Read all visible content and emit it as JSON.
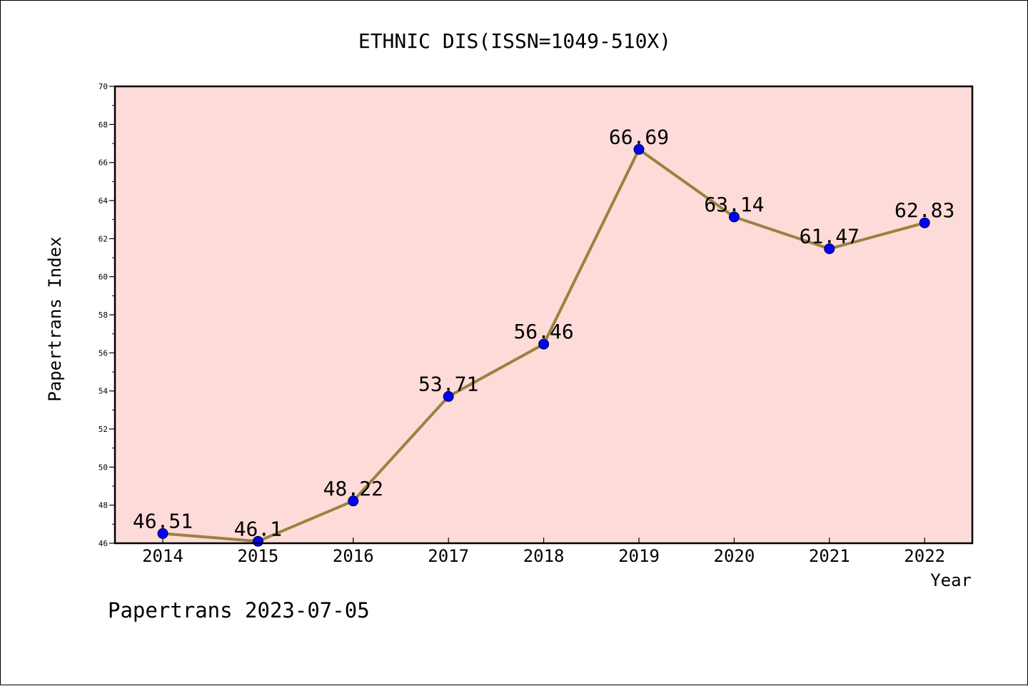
{
  "chart_data": {
    "type": "line",
    "title": "ETHNIC DIS(ISSN=1049-510X)",
    "xlabel": "Year",
    "ylabel": "Papertrans Index",
    "footer": "Papertrans 2023-07-05",
    "categories": [
      "2014",
      "2015",
      "2016",
      "2017",
      "2018",
      "2019",
      "2020",
      "2021",
      "2022"
    ],
    "values": [
      46.51,
      46.1,
      48.22,
      53.71,
      56.46,
      66.69,
      63.14,
      61.47,
      62.83
    ],
    "data_labels": [
      "46.51",
      "46.1",
      "48.22",
      "53.71",
      "56.46",
      "66.69",
      "63.14",
      "61.47",
      "62.83"
    ],
    "ylim": [
      46,
      70
    ],
    "yticks": [
      "46",
      "48",
      "50",
      "52",
      "54",
      "56",
      "58",
      "60",
      "62",
      "64",
      "66",
      "68",
      "70"
    ],
    "grid": false,
    "colors": {
      "plot_background": "#fddbd8",
      "line": "#9a8240",
      "marker": "#0000ff"
    }
  }
}
